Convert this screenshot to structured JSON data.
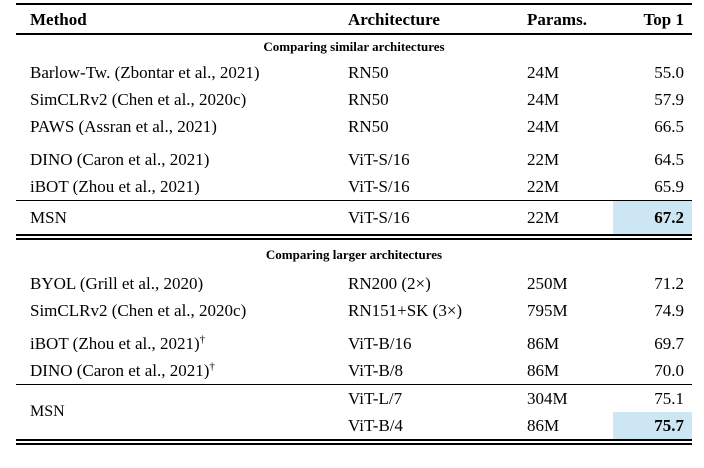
{
  "table": {
    "header": {
      "method": "Method",
      "architecture": "Architecture",
      "params": "Params.",
      "top1": "Top 1"
    },
    "highlight_color": "#cde6f4",
    "highlight_css": "background:#cde6f4",
    "section1": {
      "title": "Comparing similar architectures",
      "rows": [
        {
          "method": "Barlow-Tw. (Zbontar et al., 2021)",
          "arch": "RN50",
          "params": "24M",
          "top1": "55.0"
        },
        {
          "method": "SimCLRv2 (Chen et al., 2020c)",
          "arch": "RN50",
          "params": "24M",
          "top1": "57.9"
        },
        {
          "method": "PAWS (Assran et al., 2021)",
          "arch": "RN50",
          "params": "24M",
          "top1": "66.5"
        },
        {
          "method": "DINO (Caron et al., 2021)",
          "arch": "ViT-S/16",
          "params": "22M",
          "top1": "64.5"
        },
        {
          "method": "iBOT (Zhou et al., 2021)",
          "arch": "ViT-S/16",
          "params": "22M",
          "top1": "65.9"
        }
      ],
      "msn": {
        "method": "MSN",
        "arch": "ViT-S/16",
        "params": "22M",
        "top1": "67.2"
      }
    },
    "section2": {
      "title": "Comparing larger architectures",
      "rows": [
        {
          "method": "BYOL (Grill et al., 2020)",
          "arch": "RN200 (2×)",
          "params": "250M",
          "top1": "71.2"
        },
        {
          "method": "SimCLRv2 (Chen et al., 2020c)",
          "arch": "RN151+SK (3×)",
          "params": "795M",
          "top1": "74.9"
        },
        {
          "method": "iBOT (Zhou et al., 2021)",
          "dagger": "†",
          "arch": "ViT-B/16",
          "params": "86M",
          "top1": "69.7"
        },
        {
          "method": "DINO (Caron et al., 2021)",
          "dagger": "†",
          "arch": "ViT-B/8",
          "params": "86M",
          "top1": "70.0"
        }
      ],
      "msn": {
        "method": "MSN",
        "rows": [
          {
            "arch": "ViT-L/7",
            "params": "304M",
            "top1": "75.1"
          },
          {
            "arch": "ViT-B/4",
            "params": "86M",
            "top1": "75.7"
          }
        ]
      }
    }
  }
}
